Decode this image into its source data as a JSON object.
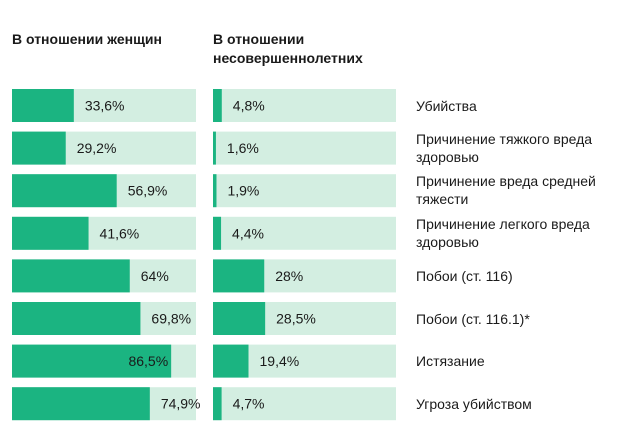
{
  "headers": {
    "women": "В отношении женщин",
    "minors": "В отношении несовершеннолетних"
  },
  "colors": {
    "filled": "#1bb481",
    "track": "#d3eee1"
  },
  "chart_data": {
    "type": "bar",
    "orientation": "horizontal",
    "xlim": [
      0,
      100
    ],
    "categories": [
      "Убийства",
      "Причинение тяжкого вреда здоровью",
      "Причинение вреда средней тяжести",
      "Причинение легкого вреда здоровью",
      "Побои (ст. 116)",
      "Побои (ст. 116.1)*",
      "Истязание",
      "Угроза убийством"
    ],
    "series": [
      {
        "name": "В отношении женщин",
        "values": [
          33.6,
          29.2,
          56.9,
          41.6,
          64,
          69.8,
          86.5,
          74.9
        ],
        "labels": [
          "33,6%",
          "29,2%",
          "56,9%",
          "41,6%",
          "64%",
          "69,8%",
          "86,5%",
          "74,9%"
        ]
      },
      {
        "name": "В отношении несовершеннолетних",
        "values": [
          4.8,
          1.6,
          1.9,
          4.4,
          28,
          28.5,
          19.4,
          4.7
        ],
        "labels": [
          "4,8%",
          "1,6%",
          "1,9%",
          "4,4%",
          "28%",
          "28,5%",
          "19,4%",
          "4,7%"
        ]
      }
    ]
  }
}
